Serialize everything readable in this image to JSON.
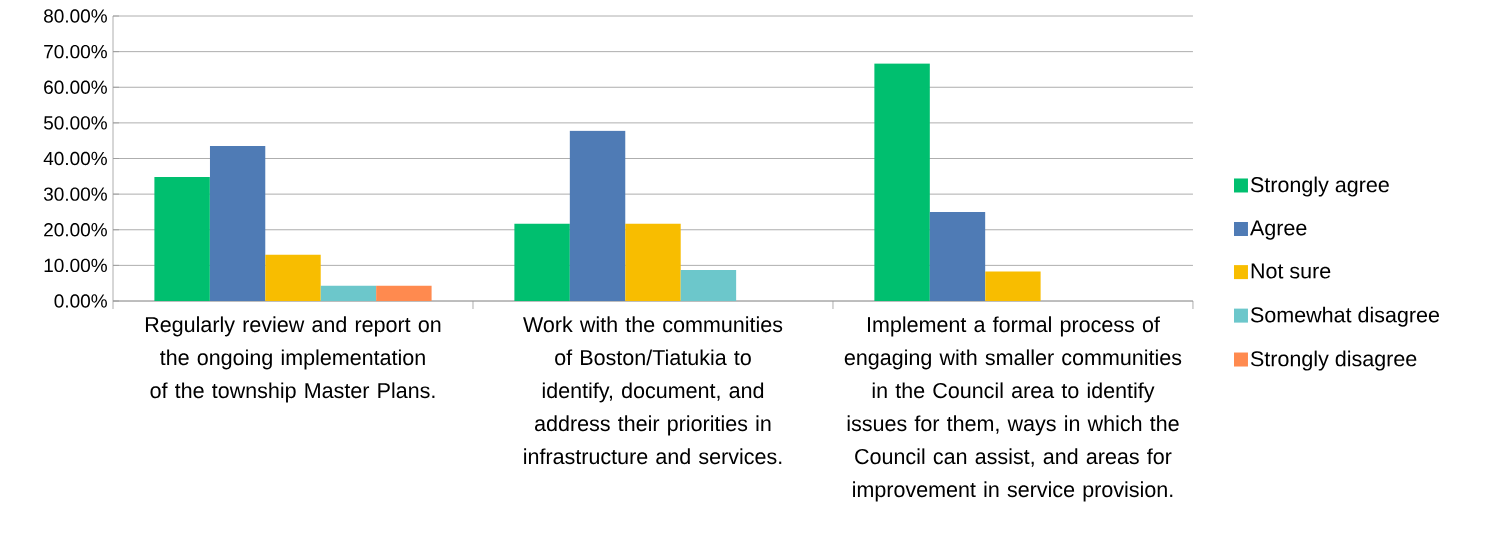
{
  "chart_data": {
    "type": "bar",
    "categories": [
      "Regularly review and report on the ongoing implementation of the township Master Plans.",
      "Work with the communities of Boston/Tiatukia to identify, document, and address their priorities in infrastructure and services.",
      "Implement a formal process of engaging with smaller communities in the Council area to identify issues for them, ways in which the Council can assist, and areas for improvement in service provision."
    ],
    "series": [
      {
        "name": "Strongly agree",
        "color": "#00bf6f",
        "values": [
          34.8,
          21.7,
          66.7
        ]
      },
      {
        "name": "Agree",
        "color": "#4f7bb5",
        "values": [
          43.5,
          47.8,
          25.0
        ]
      },
      {
        "name": "Not sure",
        "color": "#f8bd00",
        "values": [
          13.0,
          21.7,
          8.3
        ]
      },
      {
        "name": "Somewhat disagree",
        "color": "#6cc7cb",
        "values": [
          4.3,
          8.7,
          0
        ]
      },
      {
        "name": "Strongly disagree",
        "color": "#ff8a4f",
        "values": [
          4.3,
          0,
          0
        ]
      }
    ],
    "ylim": [
      0,
      80
    ],
    "yticks": [
      {
        "value": 0,
        "label": "0.00%"
      },
      {
        "value": 10,
        "label": "10.00%"
      },
      {
        "value": 20,
        "label": "20.00%"
      },
      {
        "value": 30,
        "label": "30.00%"
      },
      {
        "value": 40,
        "label": "40.00%"
      },
      {
        "value": 50,
        "label": "50.00%"
      },
      {
        "value": 60,
        "label": "60.00%"
      },
      {
        "value": 70,
        "label": "70.00%"
      },
      {
        "value": 80,
        "label": "80.00%"
      }
    ],
    "grid": "y",
    "legend": "right"
  }
}
